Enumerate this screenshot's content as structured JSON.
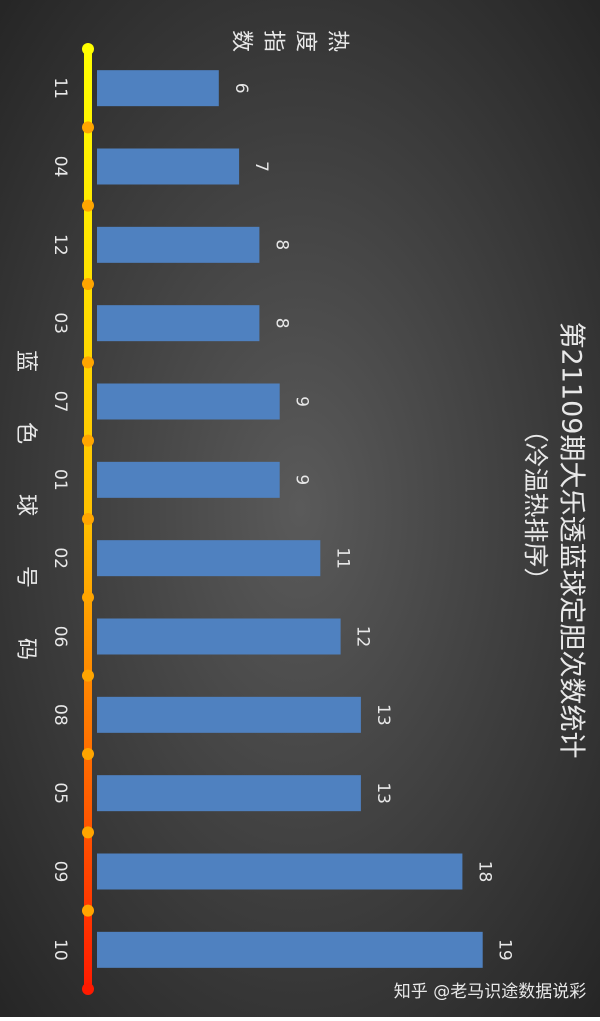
{
  "chart_data": {
    "type": "bar",
    "title": "第21109期大乐透蓝球定胆次数统计",
    "subtitle": "（冷温热排序）",
    "x_label": "蓝色球号码",
    "y_label": "热度指数",
    "categories": [
      "11",
      "04",
      "12",
      "03",
      "07",
      "01",
      "02",
      "06",
      "08",
      "05",
      "09",
      "10"
    ],
    "values": [
      6,
      7,
      8,
      8,
      9,
      9,
      11,
      12,
      13,
      13,
      18,
      19
    ],
    "color": "#4f81c0",
    "ylim": [
      0,
      20
    ],
    "orientation": "rotated"
  },
  "watermark": "知乎 @老马识途数据说彩"
}
